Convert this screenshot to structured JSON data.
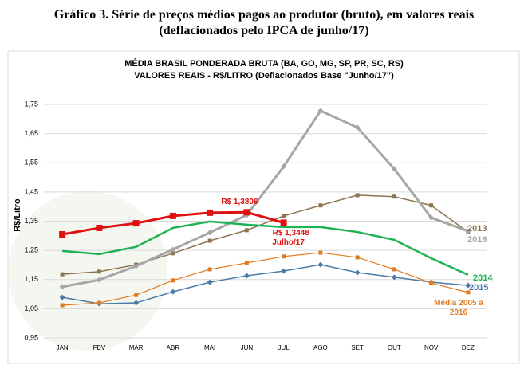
{
  "header": {
    "title": "Gráfico 3. Série de preços médios pagos ao produtor (bruto), em valores reais",
    "subtitle": "(deflacionados pelo IPCA de junho/17)"
  },
  "chart_data": {
    "type": "line",
    "title": "MÉDIA BRASIL PONDERADA BRUTA (BA, GO, MG, SP, PR, SC, RS)",
    "subtitle": "VALORES REAIS - R$/LITRO (Deflacionados Base \"Junho/17\")",
    "y_label": "R$/Litro",
    "categories": [
      "JAN",
      "FEV",
      "MAR",
      "ABR",
      "MAI",
      "JUN",
      "JUL",
      "AGO",
      "SET",
      "OUT",
      "NOV",
      "DEZ"
    ],
    "ylim": [
      0.95,
      1.75
    ],
    "yticks": [
      {
        "value": 0.95,
        "label": "0,95"
      },
      {
        "value": 1.05,
        "label": "1,05"
      },
      {
        "value": 1.15,
        "label": "1,15"
      },
      {
        "value": 1.25,
        "label": "1,25"
      },
      {
        "value": 1.35,
        "label": "1,35"
      },
      {
        "value": 1.45,
        "label": "1,45"
      },
      {
        "value": 1.55,
        "label": "1,55"
      },
      {
        "value": 1.65,
        "label": "1,65"
      },
      {
        "value": 1.75,
        "label": "1,75"
      }
    ],
    "grid": true,
    "series": [
      {
        "name": "2013",
        "color": "#8b7550",
        "marker": "square",
        "values": [
          1.168,
          1.177,
          1.201,
          1.24,
          1.283,
          1.319,
          1.368,
          1.404,
          1.439,
          1.434,
          1.404,
          1.313
        ]
      },
      {
        "name": "2016",
        "color": "#a6a6a6",
        "marker": "diamond",
        "values": [
          1.125,
          1.149,
          1.196,
          1.253,
          1.311,
          1.371,
          1.537,
          1.728,
          1.671,
          1.529,
          1.362,
          1.316
        ]
      },
      {
        "name": "2014",
        "color": "#1db254",
        "marker": "none",
        "values": [
          1.248,
          1.237,
          1.262,
          1.327,
          1.349,
          1.338,
          1.33,
          1.33,
          1.313,
          1.286,
          1.223,
          1.166
        ]
      },
      {
        "name": "2015",
        "color": "#4a7ba6",
        "marker": "diamond",
        "values": [
          1.089,
          1.067,
          1.07,
          1.108,
          1.141,
          1.163,
          1.179,
          1.201,
          1.174,
          1.158,
          1.141,
          1.13
        ]
      },
      {
        "name": "Média 2005 a 2016",
        "color": "#e07b1f",
        "marker": "square",
        "values": [
          1.062,
          1.07,
          1.097,
          1.147,
          1.185,
          1.207,
          1.229,
          1.242,
          1.226,
          1.185,
          1.138,
          1.106
        ]
      },
      {
        "color": "#e01010",
        "marker": "square",
        "values": [
          1.305,
          1.327,
          1.343,
          1.368,
          1.379,
          1.3806,
          1.3448,
          null,
          null,
          null,
          null,
          null
        ],
        "value_labels": [
          null,
          null,
          null,
          null,
          null,
          "R$ 1,3806",
          "R$ 1,3448",
          null,
          null,
          null,
          null,
          null
        ]
      }
    ],
    "annotations": [
      "Julho/17"
    ]
  }
}
